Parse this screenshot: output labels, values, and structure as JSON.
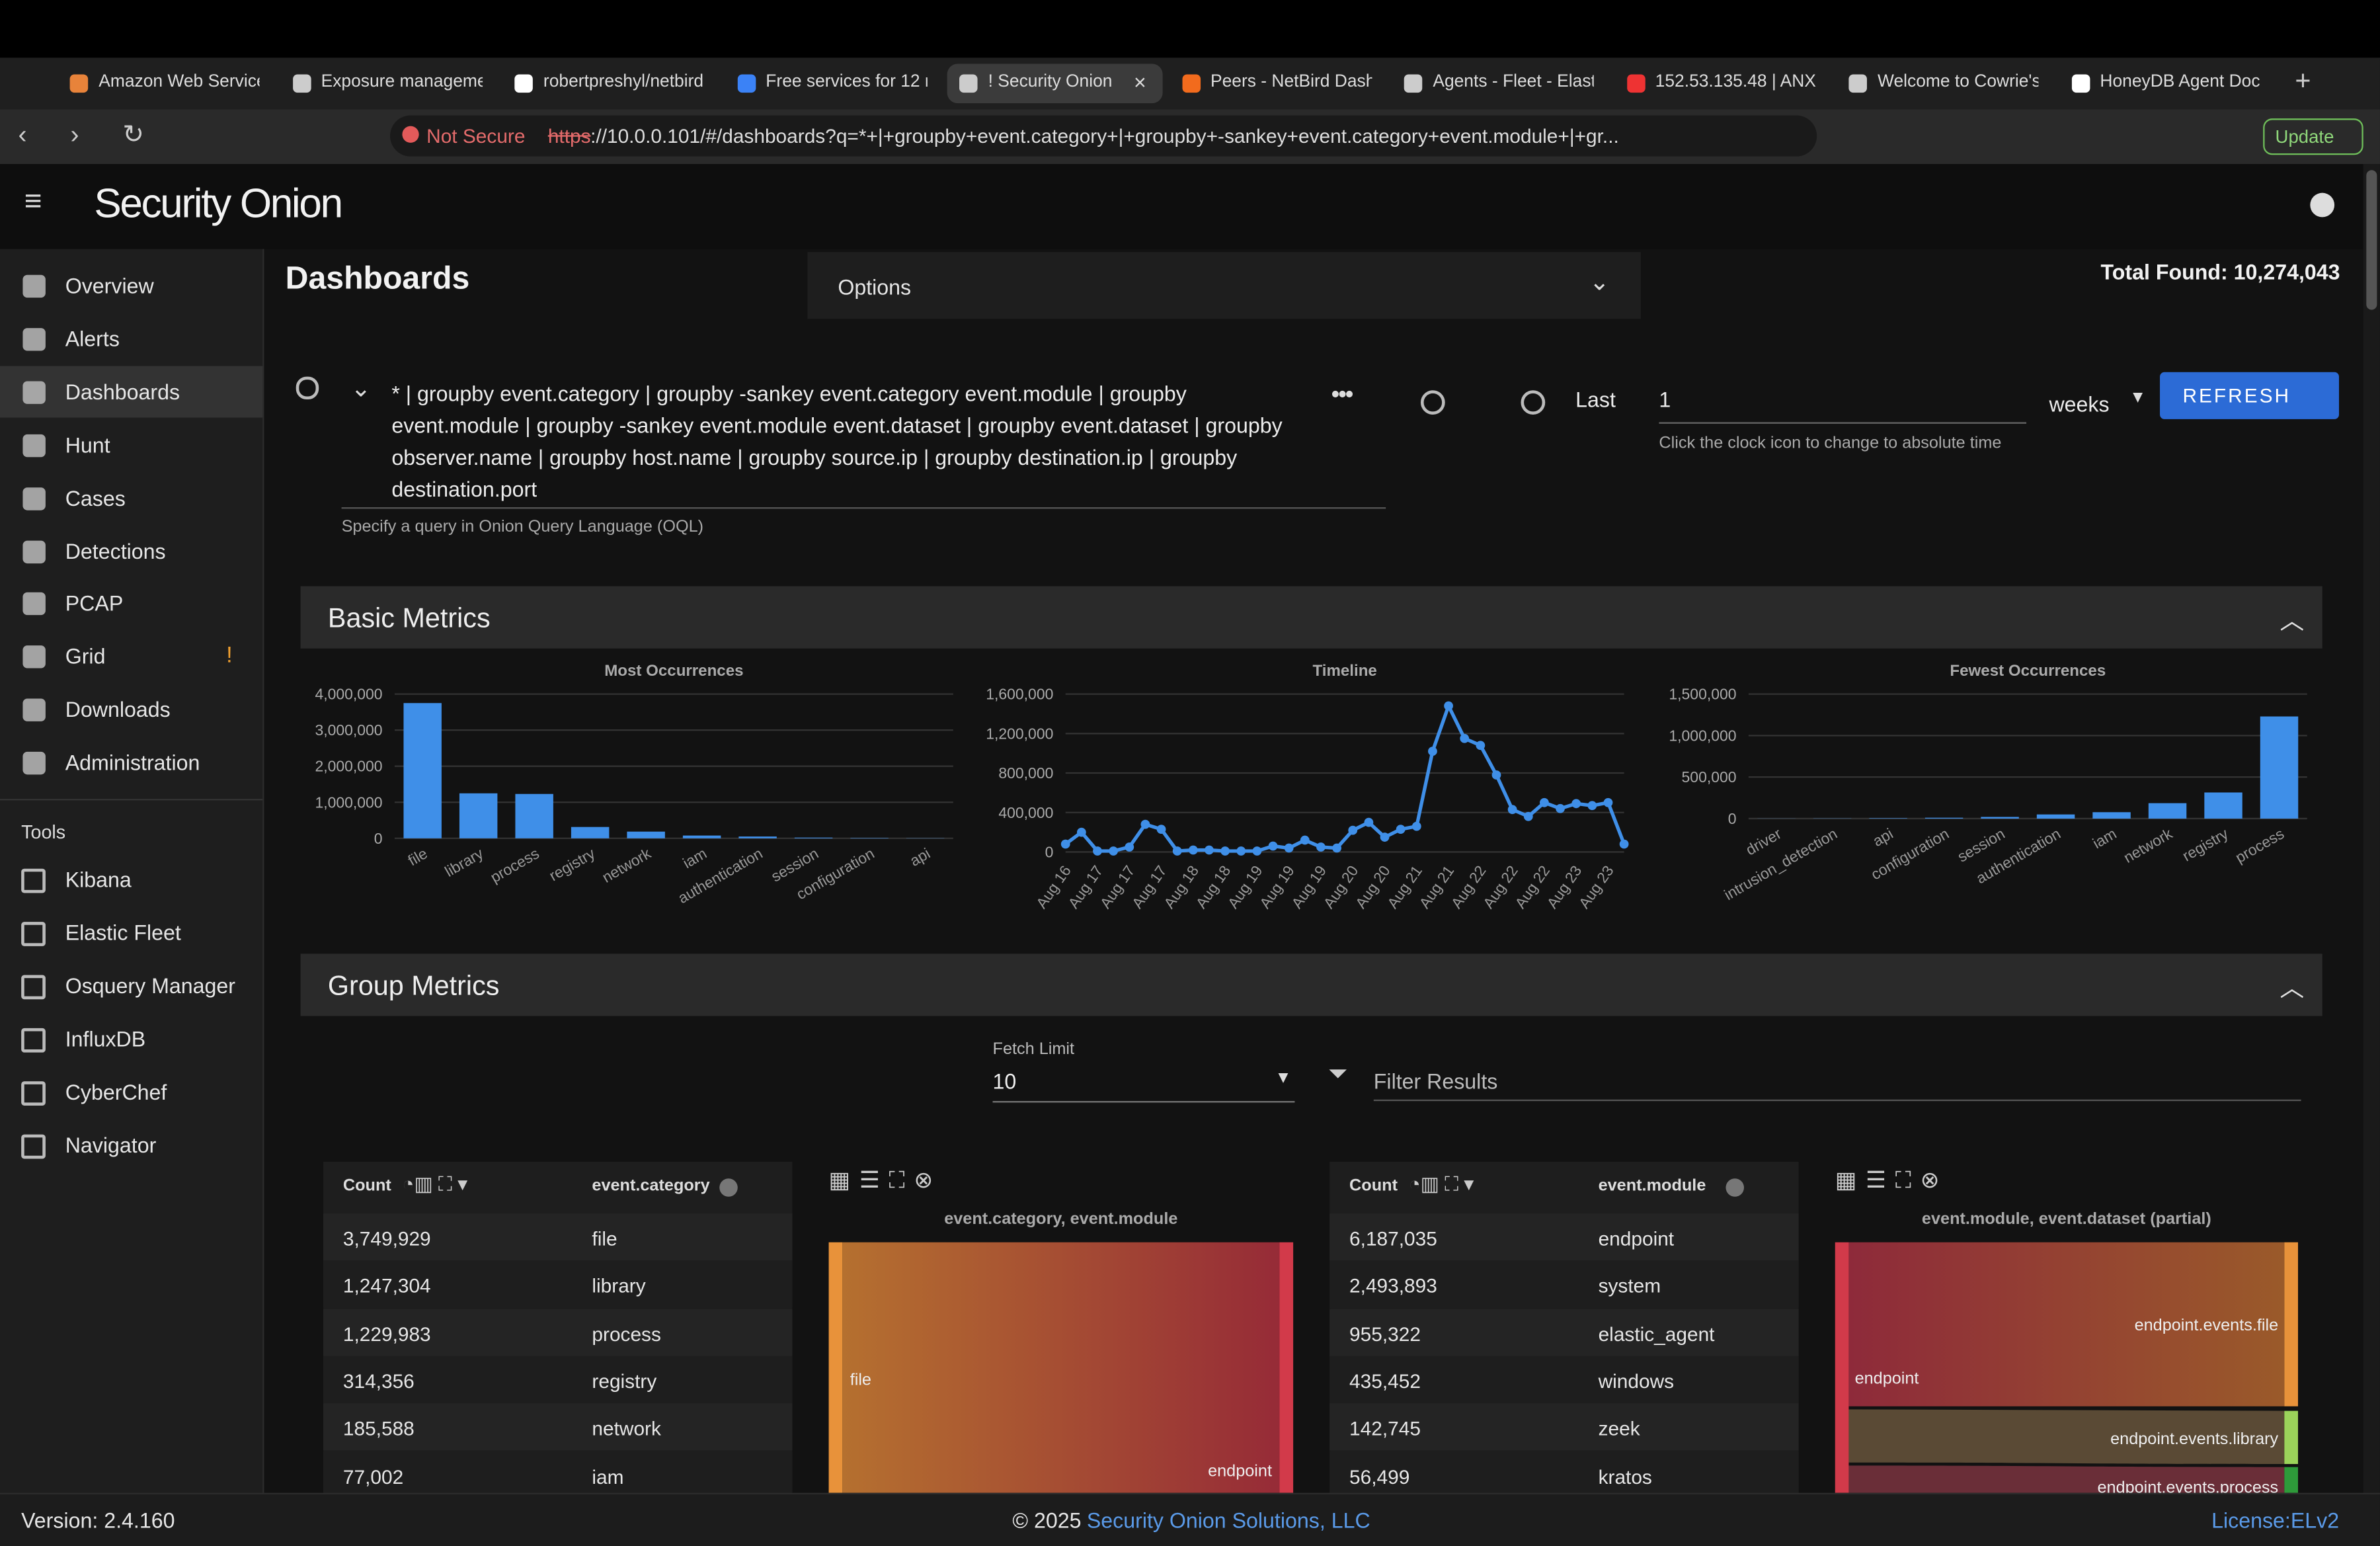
{
  "browser": {
    "tabs": [
      "Amazon Web Service",
      "Exposure manageme",
      "robertpreshyl/netbird",
      "Free services for 12 m",
      "! Security Onion",
      "Peers - NetBird Dash",
      "Agents - Fleet - Elast",
      "152.53.135.48 | ANX",
      "Welcome to Cowrie's",
      "HoneyDB Agent Doc"
    ],
    "not_secure": "Not Secure",
    "scheme": "https",
    "url_rest": "://10.0.0.101/#/dashboards?q=*+|+groupby+event.category+|+groupby+-sankey+event.category+event.module+|+gr...",
    "update": "Update"
  },
  "app": {
    "brand": "Security Onion",
    "nav": [
      "Overview",
      "Alerts",
      "Dashboards",
      "Hunt",
      "Cases",
      "Detections",
      "PCAP",
      "Grid",
      "Downloads",
      "Administration"
    ],
    "nav_alert": "!",
    "tools_heading": "Tools",
    "tools": [
      "Kibana",
      "Elastic Fleet",
      "Osquery Manager",
      "InfluxDB",
      "CyberChef",
      "Navigator"
    ]
  },
  "dashboard": {
    "title": "Dashboards",
    "options": "Options",
    "total_found": "Total Found: 10,274,043",
    "query": "* | groupby event.category | groupby -sankey event.category event.module | groupby event.module | groupby -sankey event.module event.dataset | groupby event.dataset | groupby observer.name | groupby host.name | groupby source.ip | groupby destination.ip | groupby destination.port",
    "query_hint": "Specify a query in Onion Query Language (OQL)",
    "last": "Last",
    "last_value": "1",
    "last_unit": "weeks",
    "refresh": "REFRESH",
    "time_hint": "Click the clock icon to change to absolute time"
  },
  "basic_metrics": {
    "title": "Basic Metrics",
    "charts": [
      {
        "type": "bar",
        "title": "Most Occurrences",
        "color": "#3f8fe8",
        "categories": [
          "file",
          "library",
          "process",
          "registry",
          "network",
          "iam",
          "authentication",
          "session",
          "configuration",
          "api"
        ],
        "values": [
          3749929,
          1247304,
          1229983,
          314356,
          185588,
          77002,
          50000,
          20000,
          10000,
          5000
        ],
        "ylim": [
          0,
          4000000
        ],
        "yticks": [
          0,
          {
            "value": 1000000,
            "label": "1,000,000"
          },
          {
            "value": 2000000,
            "label": "2,000,000"
          },
          {
            "value": 3000000,
            "label": "3,000,000"
          },
          {
            "value": 4000000,
            "label": "4,000,000"
          }
        ]
      },
      {
        "type": "line",
        "title": "Timeline",
        "color": "#3f8fe8",
        "categories": [
          "Aug 16",
          null,
          "Aug 17",
          null,
          "Aug 17",
          null,
          "Aug 17",
          null,
          "Aug 18",
          null,
          "Aug 18",
          null,
          "Aug 19",
          null,
          "Aug 19",
          null,
          "Aug 19",
          null,
          "Aug 20",
          null,
          "Aug 20",
          null,
          "Aug 21",
          null,
          "Aug 21",
          null,
          "Aug 22",
          null,
          "Aug 22",
          null,
          "Aug 22",
          null,
          "Aug 23",
          null,
          "Aug 23",
          null
        ],
        "values": [
          80000,
          200000,
          10000,
          10000,
          50000,
          280000,
          230000,
          10000,
          20000,
          20000,
          10000,
          10000,
          10000,
          60000,
          40000,
          120000,
          50000,
          40000,
          220000,
          300000,
          150000,
          230000,
          260000,
          1020000,
          1480000,
          1150000,
          1080000,
          780000,
          430000,
          360000,
          500000,
          440000,
          490000,
          470000,
          500000,
          80000
        ],
        "ylim": [
          0,
          1600000
        ],
        "yticks": [
          0,
          {
            "value": 400000,
            "label": "400,000"
          },
          {
            "value": 800000,
            "label": "800,000"
          },
          {
            "value": 1200000,
            "label": "1,200,000"
          },
          {
            "value": 1600000,
            "label": "1,600,000"
          }
        ]
      },
      {
        "type": "bar",
        "title": "Fewest Occurrences",
        "color": "#3f8fe8",
        "categories": [
          "driver",
          "intrusion_detection",
          "api",
          "configuration",
          "session",
          "authentication",
          "iam",
          "network",
          "registry",
          "process"
        ],
        "values": [
          1000,
          2000,
          5000,
          10000,
          20000,
          50000,
          77002,
          185588,
          314356,
          1229983
        ],
        "ylim": [
          0,
          1500000
        ],
        "yticks": [
          0,
          {
            "value": 500000,
            "label": "500,000"
          },
          {
            "value": 1000000,
            "label": "1,000,000"
          },
          {
            "value": 1500000,
            "label": "1,500,000"
          }
        ]
      }
    ]
  },
  "group_metrics": {
    "title": "Group Metrics",
    "fetch_limit_label": "Fetch Limit",
    "fetch_limit": "10",
    "filter_placeholder": "Filter Results",
    "tables": [
      {
        "headers": [
          "Count",
          "event.category"
        ],
        "rows": [
          [
            "3,749,929",
            "file"
          ],
          [
            "1,247,304",
            "library"
          ],
          [
            "1,229,983",
            "process"
          ],
          [
            "314,356",
            "registry"
          ],
          [
            "185,588",
            "network"
          ],
          [
            "77,002",
            "iam"
          ]
        ]
      },
      {
        "headers": [
          "Count",
          "event.module"
        ],
        "rows": [
          [
            "6,187,035",
            "endpoint"
          ],
          [
            "2,493,893",
            "system"
          ],
          [
            "955,322",
            "elastic_agent"
          ],
          [
            "435,452",
            "windows"
          ],
          [
            "142,745",
            "zeek"
          ],
          [
            "56,499",
            "kratos"
          ]
        ]
      }
    ],
    "sankeys": [
      {
        "title": "event.category, event.module",
        "labels": [
          "file",
          "endpoint"
        ]
      },
      {
        "title": "event.module, event.dataset (partial)",
        "labels": [
          "endpoint",
          "endpoint.events.file",
          "endpoint.events.library",
          "endpoint.events.process"
        ]
      }
    ]
  },
  "footer": {
    "version": "Version: 2.4.160",
    "copyright": "© 2025",
    "company": "Security Onion Solutions, LLC",
    "license": "License:ELv2"
  }
}
